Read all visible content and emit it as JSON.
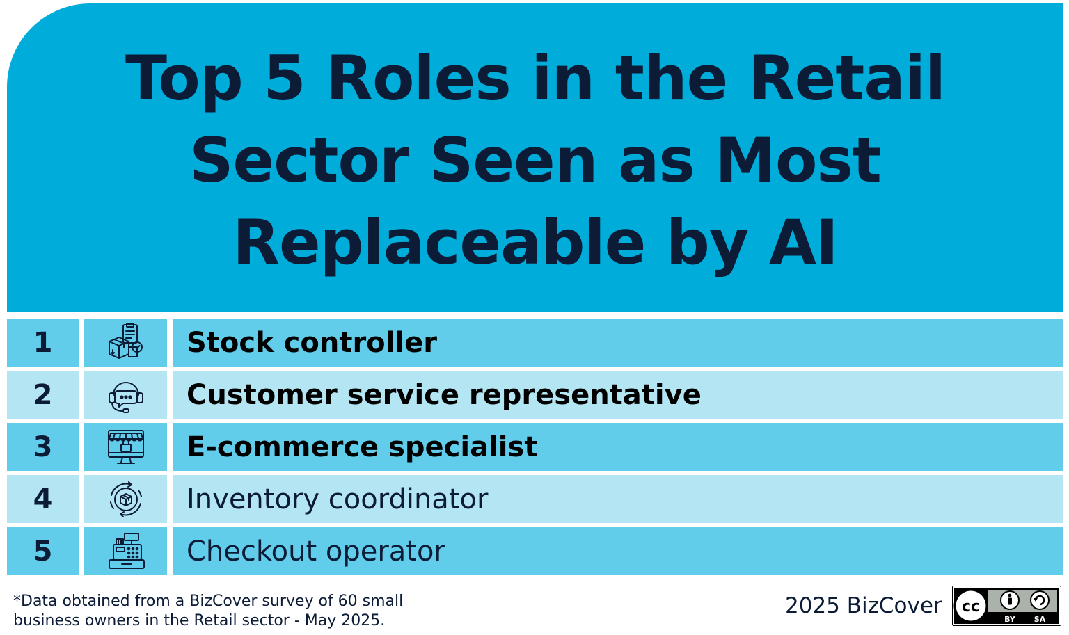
{
  "title": "Top 5 Roles in the Retail Sector Seen as Most Replaceable by AI",
  "roles": [
    {
      "rank": "1",
      "label": "Stock controller",
      "icon": "stock-boxes-clipboard-icon",
      "bold": true
    },
    {
      "rank": "2",
      "label": "Customer service representative",
      "icon": "headset-chat-icon",
      "bold": true
    },
    {
      "rank": "3",
      "label": "E-commerce specialist",
      "icon": "online-store-monitor-icon",
      "bold": true
    },
    {
      "rank": "4",
      "label": "Inventory coordinator",
      "icon": "box-cycle-arrows-icon",
      "bold": false
    },
    {
      "rank": "5",
      "label": "Checkout operator",
      "icon": "cash-register-icon",
      "bold": false
    }
  ],
  "footnote": {
    "line1": "*Data obtained from a BizCover survey of 60 small",
    "line2": "business owners in the Retail sector - May 2025."
  },
  "credit": "2025 BizCover",
  "license": {
    "by": "BY",
    "sa": "SA"
  },
  "colors": {
    "header": "#00acd9",
    "row_dark": "#61cdea",
    "row_light": "#b3e5f3",
    "text": "#0c1b36"
  }
}
